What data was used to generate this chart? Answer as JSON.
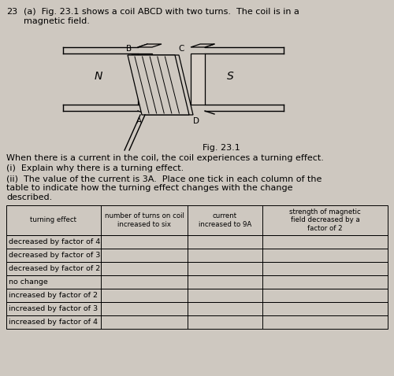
{
  "background_color": "#cec8c0",
  "question_number": "23",
  "question_text_line1": "(a)  Fig. 23.1 shows a coil ABCD with two turns.  The coil is in a",
  "question_text_line2": "magnetic field.",
  "fig_label": "Fig. 23.1",
  "body_text": "When there is a current in the coil, the coil experiences a turning effect.",
  "part_i": "(i)  Explain why there is a turning effect.",
  "part_ii_line1": "(ii)  The value of the current is 3A.  Place one tick in each column of the",
  "part_ii_line2": "table to indicate how the turning effect changes with the change",
  "part_ii_line3": "described.",
  "table_headers": [
    "turning effect",
    "number of turns on coil\nincreased to six",
    "current\nincreased to 9A",
    "strength of magnetic\nfield decreased by a\nfactor of 2"
  ],
  "table_rows": [
    "decreased by factor of 4",
    "decreased by factor of 3",
    "decreased by factor of 2",
    "no change",
    "increased by factor of 2",
    "increased by factor of 3",
    "increased by factor of 4"
  ]
}
